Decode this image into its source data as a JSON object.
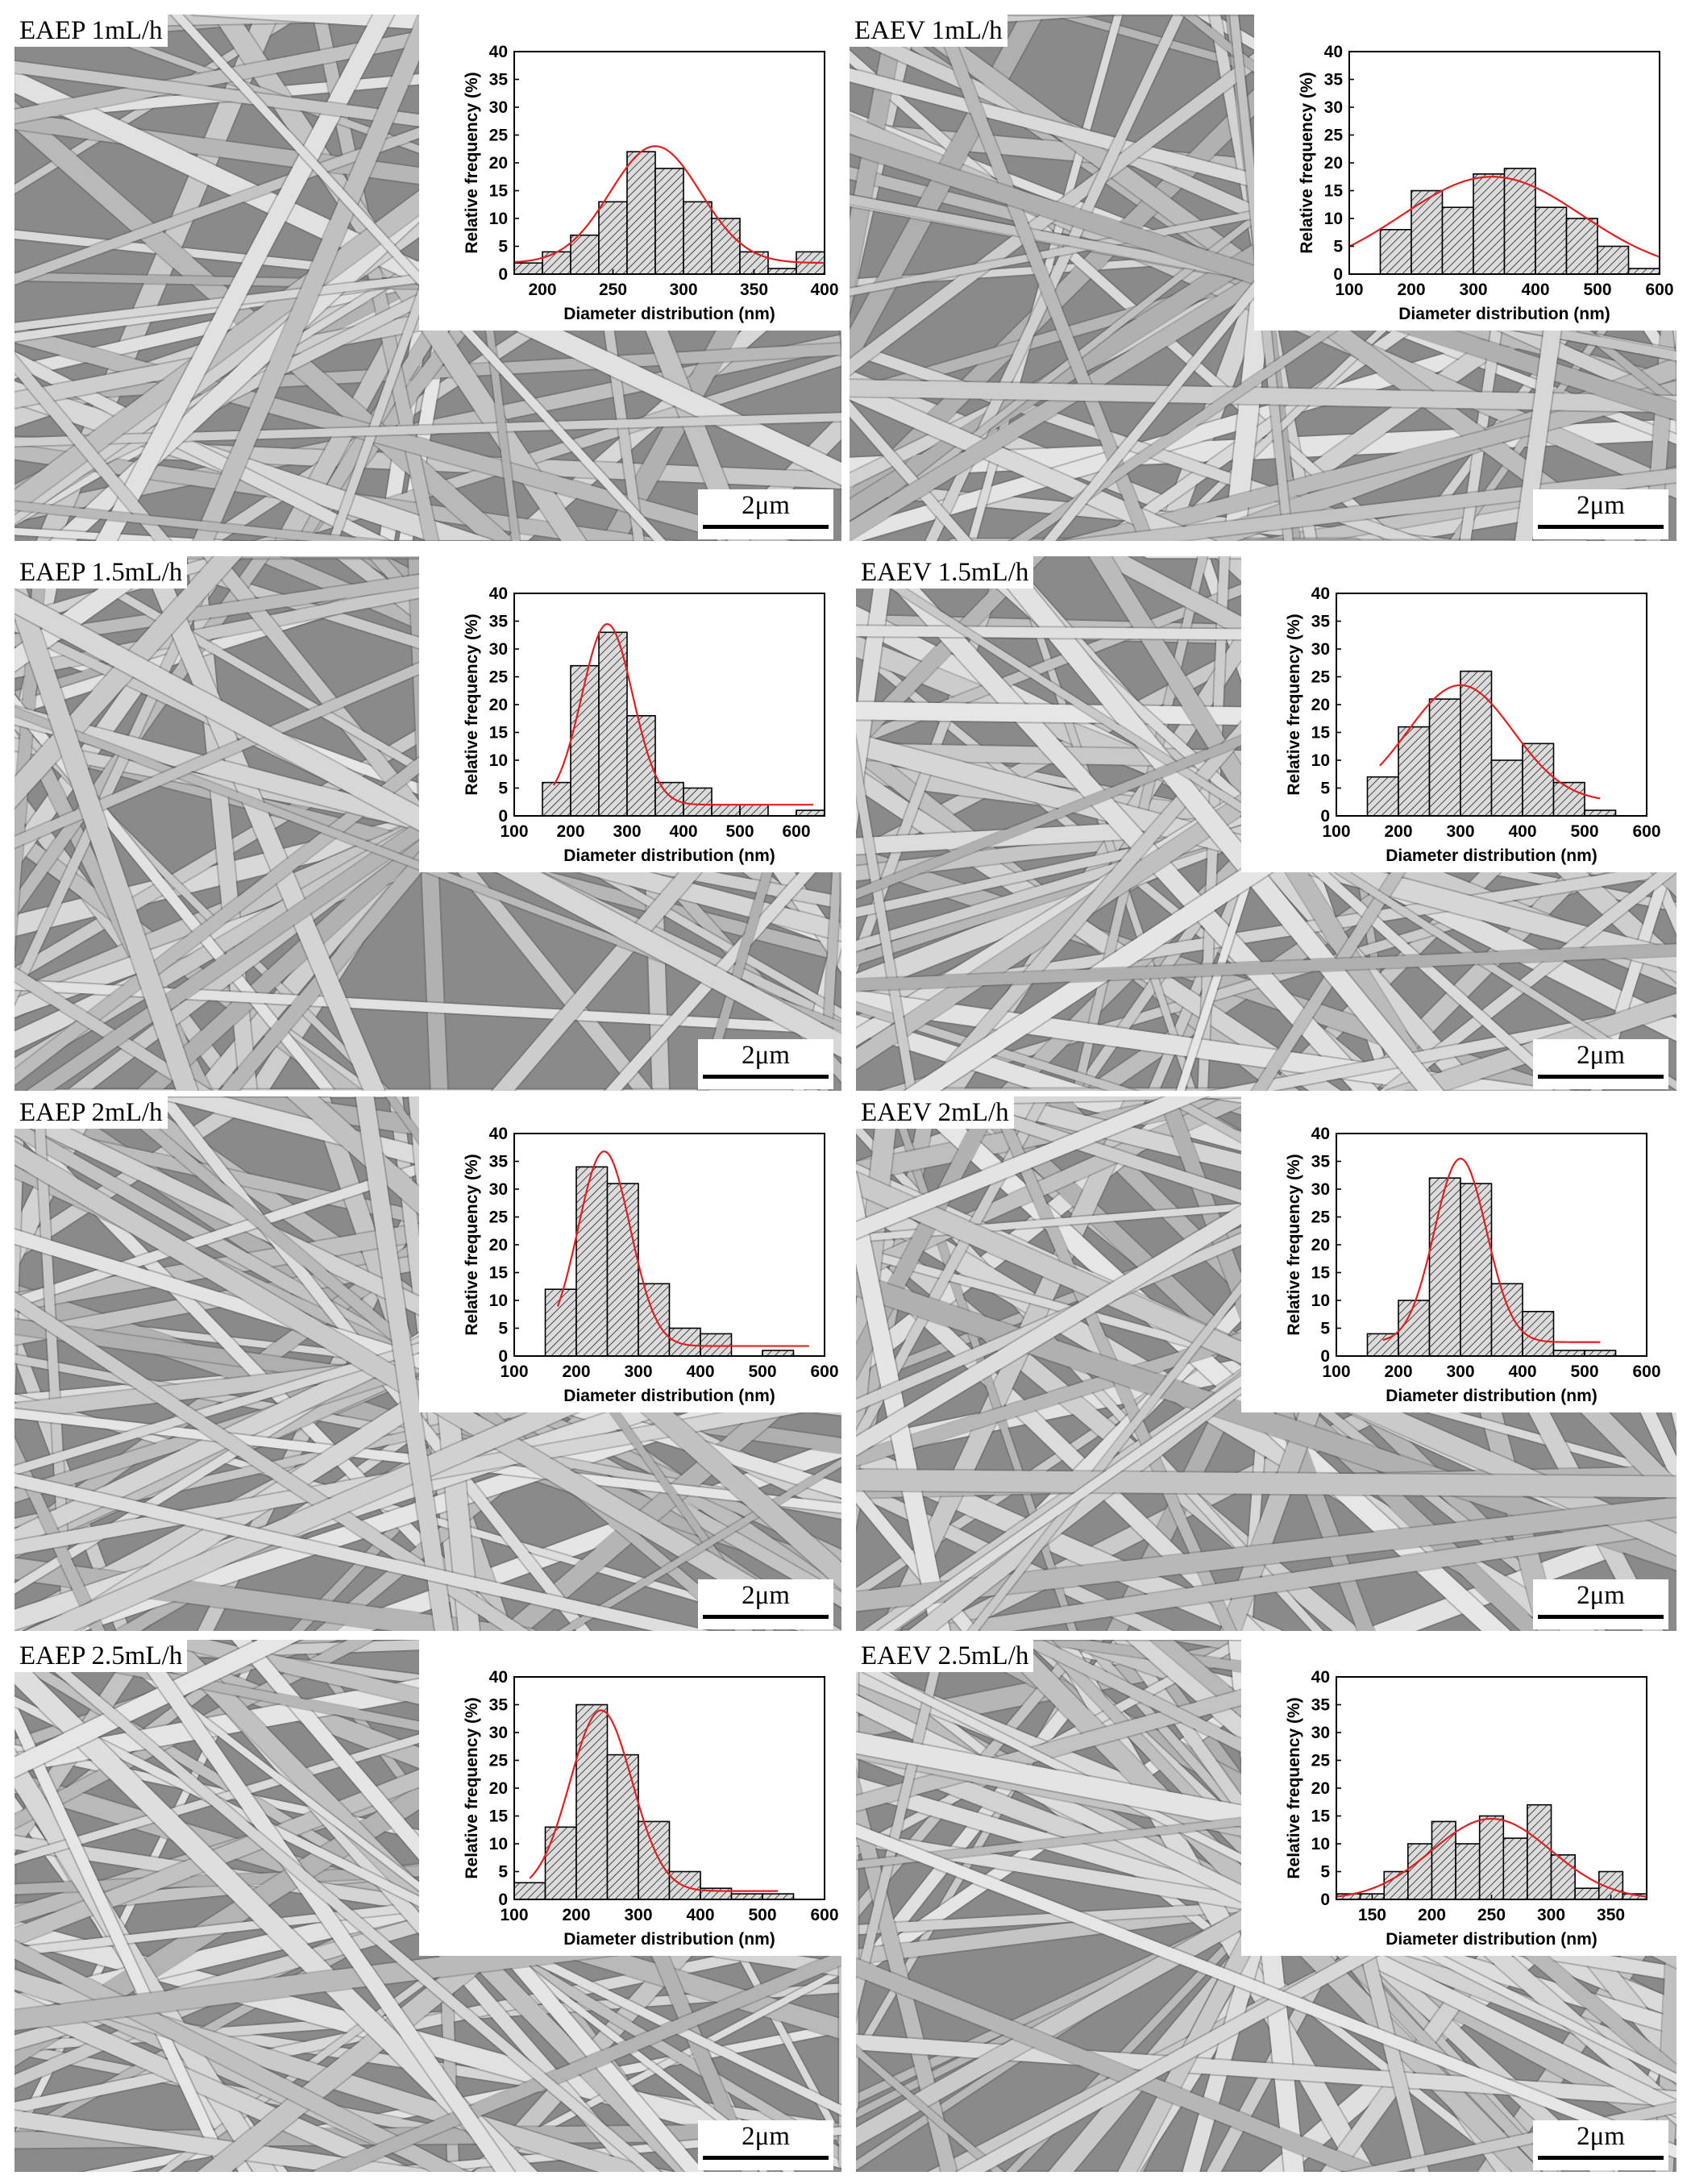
{
  "colors": {
    "bar_fill": "#dcdcdc",
    "bar_stroke": "#000000",
    "fit_line": "#e02020",
    "sem_background": "#8a8a8a",
    "fiber": "#d4d4d4"
  },
  "scale_bar_label": "2μm",
  "panels": [
    {
      "label": "EAEP 1mL/h",
      "fiber_seed": 11
    },
    {
      "label": "EAEV 1mL/h",
      "fiber_seed": 23
    },
    {
      "label": "EAEP 1.5mL/h",
      "fiber_seed": 37
    },
    {
      "label": "EAEV 1.5mL/h",
      "fiber_seed": 41
    },
    {
      "label": "EAEP 2mL/h",
      "fiber_seed": 53
    },
    {
      "label": "EAEV 2mL/h",
      "fiber_seed": 67
    },
    {
      "label": "EAEP 2.5mL/h",
      "fiber_seed": 79
    },
    {
      "label": "EAEV 2.5mL/h",
      "fiber_seed": 97
    }
  ],
  "chart_data": [
    {
      "type": "bar",
      "panel": "EAEP 1mL/h",
      "xlabel": "Diameter distribution (nm)",
      "ylabel": "Relative frequency (%)",
      "xlim": [
        180,
        400
      ],
      "ylim": [
        0,
        40
      ],
      "xticks": [
        200,
        250,
        300,
        350,
        400
      ],
      "yticks": [
        0,
        5,
        10,
        15,
        20,
        25,
        30,
        35,
        40
      ],
      "bin_width": 20,
      "x": [
        190,
        210,
        230,
        250,
        270,
        290,
        310,
        330,
        350,
        370,
        390
      ],
      "values": [
        2,
        4,
        7,
        13,
        22,
        19,
        13,
        10,
        4,
        1,
        4
      ],
      "fit": {
        "type": "gaussian",
        "amplitude": 21,
        "mean": 280,
        "sigma": 32,
        "offset": 2
      }
    },
    {
      "type": "bar",
      "panel": "EAEV 1mL/h",
      "xlabel": "Diameter distribution (nm)",
      "ylabel": "Relative frequency (%)",
      "xlim": [
        100,
        600
      ],
      "ylim": [
        0,
        40
      ],
      "xticks": [
        100,
        200,
        300,
        400,
        500,
        600
      ],
      "yticks": [
        0,
        5,
        10,
        15,
        20,
        25,
        30,
        35,
        40
      ],
      "bin_width": 50,
      "x": [
        175,
        225,
        275,
        325,
        375,
        425,
        475,
        525,
        575
      ],
      "values": [
        8,
        15,
        12,
        18,
        19,
        12,
        10,
        5,
        1
      ],
      "fit": {
        "type": "gaussian",
        "amplitude": 17.5,
        "mean": 330,
        "sigma": 145,
        "offset": 0
      }
    },
    {
      "type": "bar",
      "panel": "EAEP 1.5mL/h",
      "xlabel": "Diameter distribution (nm)",
      "ylabel": "Relative frequency (%)",
      "xlim": [
        100,
        650
      ],
      "ylim": [
        0,
        40
      ],
      "xticks": [
        100,
        200,
        300,
        400,
        500,
        600
      ],
      "yticks": [
        0,
        5,
        10,
        15,
        20,
        25,
        30,
        35,
        40
      ],
      "bin_width": 50,
      "x": [
        175,
        225,
        275,
        325,
        375,
        425,
        475,
        525,
        625
      ],
      "values": [
        6,
        27,
        33,
        18,
        6,
        5,
        2,
        2,
        1
      ],
      "fit": {
        "type": "gaussian",
        "amplitude": 32.5,
        "mean": 265,
        "sigma": 45,
        "offset": 2,
        "x_range": [
          170,
          630
        ]
      }
    },
    {
      "type": "bar",
      "panel": "EAEV 1.5mL/h",
      "xlabel": "Diameter distribution (nm)",
      "ylabel": "Relative frequency (%)",
      "xlim": [
        100,
        600
      ],
      "ylim": [
        0,
        40
      ],
      "xticks": [
        100,
        200,
        300,
        400,
        500,
        600
      ],
      "yticks": [
        0,
        5,
        10,
        15,
        20,
        25,
        30,
        35,
        40
      ],
      "bin_width": 50,
      "x": [
        175,
        225,
        275,
        325,
        375,
        425,
        475,
        525
      ],
      "values": [
        7,
        16,
        21,
        26,
        10,
        13,
        6,
        1
      ],
      "fit": {
        "type": "gaussian",
        "amplitude": 21,
        "mean": 300,
        "sigma": 85,
        "offset": 2.5,
        "x_range": [
          170,
          525
        ]
      }
    },
    {
      "type": "bar",
      "panel": "EAEP 2mL/h",
      "xlabel": "Diameter distribution (nm)",
      "ylabel": "Relative frequency (%)",
      "xlim": [
        100,
        600
      ],
      "ylim": [
        0,
        40
      ],
      "xticks": [
        100,
        200,
        300,
        400,
        500,
        600
      ],
      "yticks": [
        0,
        5,
        10,
        15,
        20,
        25,
        30,
        35,
        40
      ],
      "bin_width": 50,
      "x": [
        175,
        225,
        275,
        325,
        375,
        425,
        525
      ],
      "values": [
        12,
        34,
        31,
        13,
        5,
        4,
        1
      ],
      "fit": {
        "type": "gaussian",
        "amplitude": 35,
        "mean": 245,
        "sigma": 42,
        "offset": 1.8,
        "x_range": [
          170,
          575
        ]
      }
    },
    {
      "type": "bar",
      "panel": "EAEV 2mL/h",
      "xlabel": "Diameter distribution (nm)",
      "ylabel": "Relative frequency (%)",
      "xlim": [
        100,
        600
      ],
      "ylim": [
        0,
        40
      ],
      "xticks": [
        100,
        200,
        300,
        400,
        500,
        600
      ],
      "yticks": [
        0,
        5,
        10,
        15,
        20,
        25,
        30,
        35,
        40
      ],
      "bin_width": 50,
      "x": [
        175,
        225,
        275,
        325,
        375,
        425,
        475,
        525
      ],
      "values": [
        4,
        10,
        32,
        31,
        13,
        8,
        1,
        1
      ],
      "fit": {
        "type": "gaussian",
        "amplitude": 33,
        "mean": 300,
        "sigma": 42,
        "offset": 2.5,
        "x_range": [
          175,
          525
        ]
      }
    },
    {
      "type": "bar",
      "panel": "EAEP 2.5mL/h",
      "xlabel": "Diameter distribution (nm)",
      "ylabel": "Relative frequency (%)",
      "xlim": [
        100,
        600
      ],
      "ylim": [
        0,
        40
      ],
      "xticks": [
        100,
        200,
        300,
        400,
        500,
        600
      ],
      "yticks": [
        0,
        5,
        10,
        15,
        20,
        25,
        30,
        35,
        40
      ],
      "bin_width": 50,
      "x": [
        125,
        175,
        225,
        275,
        325,
        375,
        425,
        475,
        525
      ],
      "values": [
        3,
        13,
        35,
        26,
        14,
        5,
        2,
        1,
        1
      ],
      "fit": {
        "type": "gaussian",
        "amplitude": 32.5,
        "mean": 240,
        "sigma": 50,
        "offset": 1.5,
        "x_range": [
          125,
          525
        ]
      }
    },
    {
      "type": "bar",
      "panel": "EAEV 2.5mL/h",
      "xlabel": "Diameter distribution (nm)",
      "ylabel": "Relative frequency (%)",
      "xlim": [
        120,
        380
      ],
      "ylim": [
        0,
        40
      ],
      "xticks": [
        150,
        200,
        250,
        300,
        350
      ],
      "yticks": [
        0,
        5,
        10,
        15,
        20,
        25,
        30,
        35,
        40
      ],
      "bin_width": 20,
      "x": [
        130,
        150,
        170,
        190,
        210,
        230,
        250,
        270,
        290,
        310,
        330,
        350,
        370
      ],
      "values": [
        1,
        1,
        5,
        10,
        14,
        10,
        15,
        11,
        17,
        8,
        2,
        5,
        1
      ],
      "fit": {
        "type": "gaussian",
        "amplitude": 14.5,
        "mean": 250,
        "sigma": 50,
        "offset": 0
      }
    }
  ]
}
